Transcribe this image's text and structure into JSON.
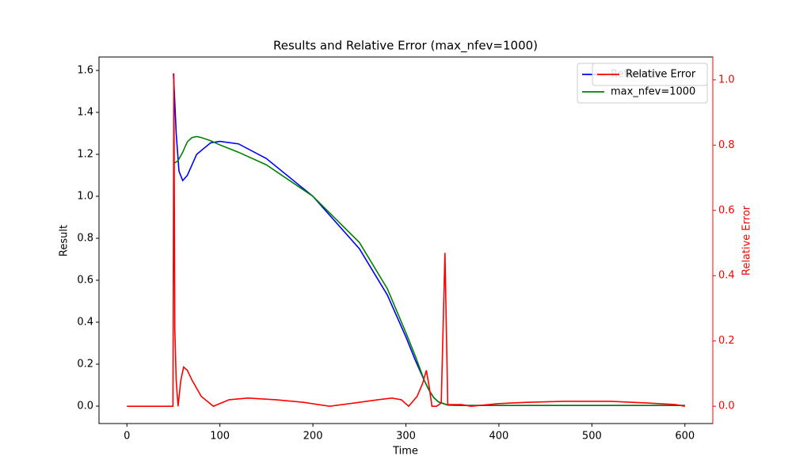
{
  "chart_data": {
    "type": "line",
    "title": "Results and Relative Error (max_nfev=1000)",
    "xlabel": "Time",
    "ylabel": "Result",
    "y2label": "Relative Error",
    "y2color": "#ff0000",
    "xlim": [
      -30,
      630
    ],
    "xticks": [
      0,
      100,
      200,
      300,
      400,
      500,
      600
    ],
    "ylim": [
      -0.083,
      1.664
    ],
    "yticks": [
      {
        "value": 0,
        "label": "0.0"
      },
      0.2,
      0.4,
      0.6,
      0.8,
      {
        "value": 1,
        "label": "1.0"
      },
      1.2,
      1.4,
      1.6
    ],
    "y2lim": [
      -0.053,
      1.07
    ],
    "y2ticks": [
      {
        "value": 0,
        "label": "0.0"
      },
      0.2,
      0.4,
      0.6,
      0.8,
      {
        "value": 1,
        "label": "1.0"
      }
    ],
    "legend": "upper right",
    "series": [
      {
        "name": "Reference",
        "color": "#0000ff",
        "x": [
          50,
          51,
          53,
          56,
          60,
          65,
          75,
          90,
          100,
          120,
          150,
          200,
          250,
          280,
          300,
          310,
          320,
          325,
          330,
          335,
          345,
          360,
          400,
          500,
          600
        ],
        "values": [
          1.585,
          1.5,
          1.3,
          1.12,
          1.075,
          1.1,
          1.2,
          1.255,
          1.262,
          1.25,
          1.18,
          1.0,
          0.75,
          0.53,
          0.33,
          0.22,
          0.12,
          0.075,
          0.04,
          0.02,
          0.005,
          0.003,
          0.003,
          0.003,
          0.003
        ]
      },
      {
        "name": "max_nfev=1000",
        "color": "#008000",
        "x": [
          50,
          55,
          60,
          65,
          70,
          75,
          80,
          90,
          100,
          120,
          150,
          200,
          250,
          280,
          300,
          310,
          320,
          325,
          330,
          335,
          345,
          360,
          400,
          500,
          600
        ],
        "values": [
          1.155,
          1.17,
          1.21,
          1.26,
          1.28,
          1.285,
          1.28,
          1.265,
          1.245,
          1.21,
          1.15,
          1.0,
          0.78,
          0.56,
          0.35,
          0.24,
          0.12,
          0.075,
          0.04,
          0.02,
          0.005,
          0.003,
          0.003,
          0.003,
          0.003
        ]
      },
      {
        "name": "Relative Error",
        "color": "#ff0000",
        "axis": "y2",
        "x": [
          0,
          49.5,
          50.5,
          51.5,
          53,
          55,
          58,
          61,
          65,
          70,
          80,
          93,
          110,
          130,
          160,
          190,
          218,
          250,
          270,
          285,
          295,
          303,
          312,
          318,
          322,
          325,
          328,
          333,
          338,
          342,
          345,
          360,
          370,
          400,
          430,
          470,
          520,
          560,
          590,
          600
        ],
        "values": [
          0,
          0,
          1.02,
          0.24,
          0.08,
          0,
          0.08,
          0.12,
          0.11,
          0.08,
          0.03,
          0,
          0.02,
          0.025,
          0.02,
          0.012,
          0,
          0.012,
          0.02,
          0.025,
          0.02,
          0,
          0.03,
          0.07,
          0.11,
          0.06,
          0,
          0,
          0.01,
          0.47,
          0.005,
          0.005,
          0,
          0.008,
          0.012,
          0.015,
          0.015,
          0.01,
          0.005,
          0
        ]
      }
    ]
  }
}
